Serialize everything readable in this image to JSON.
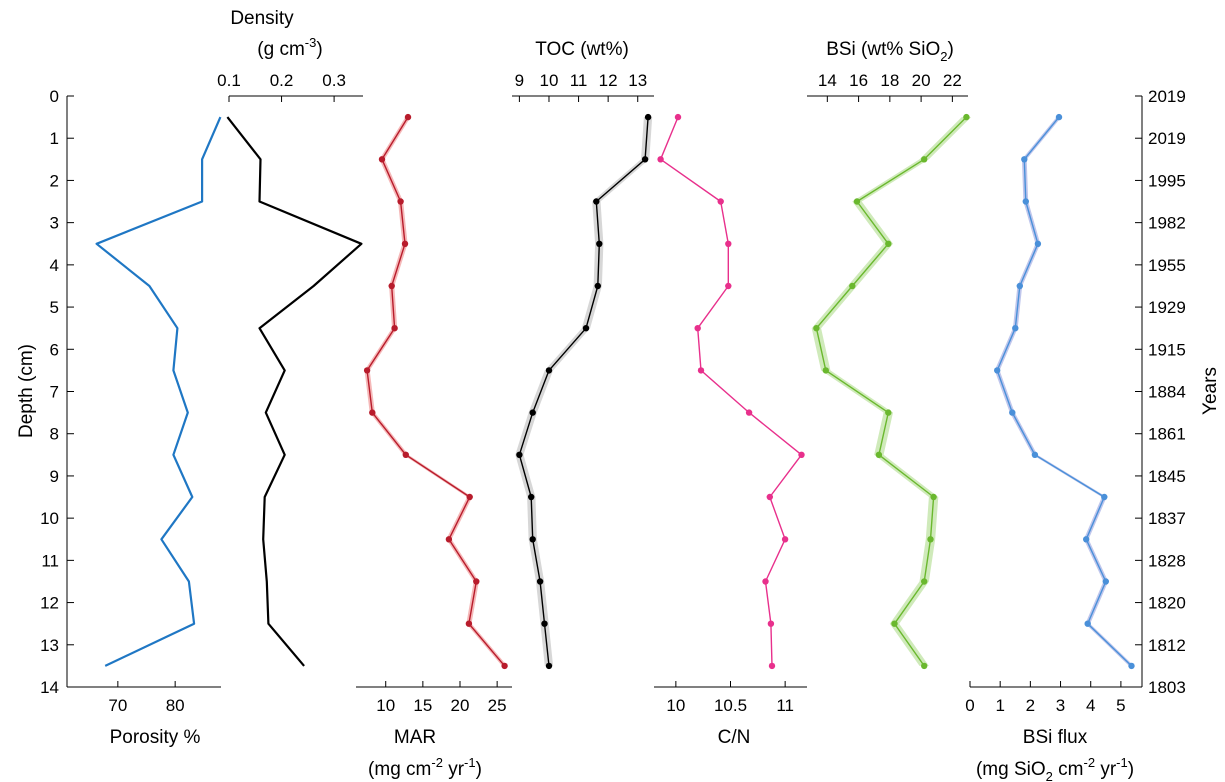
{
  "chart_data": {
    "type": "line",
    "depth_axis": {
      "label": "Depth (cm)",
      "range": [
        0,
        14
      ],
      "ticks": [
        0,
        1,
        2,
        3,
        4,
        5,
        6,
        7,
        8,
        9,
        10,
        11,
        12,
        13,
        14
      ],
      "reversed": true
    },
    "years_axis": {
      "label": "Years",
      "tick_depths": [
        0,
        1,
        2,
        3,
        4,
        5,
        6,
        7,
        8,
        9,
        10,
        11,
        12,
        13,
        14
      ],
      "tick_labels": [
        "2019",
        "2019",
        "1995",
        "1982",
        "1955",
        "1929",
        "1915",
        "1884",
        "1861",
        "1845",
        "1837",
        "1828",
        "1820",
        "1812",
        "1803"
      ]
    },
    "panels": [
      {
        "id": "porosity",
        "x_label": [
          "Porosity %"
        ],
        "x_ticks": [
          70,
          80
        ],
        "x_range": [
          62,
          88
        ],
        "axis_position": "bottom",
        "color": "#1f77c4",
        "series": [
          {
            "name": "Porosity",
            "depth": [
              0.5,
              1.5,
              2.5,
              3.5,
              4.5,
              5.5,
              6.5,
              7.5,
              8.5,
              9.5,
              10.5,
              11.5,
              12.5,
              13.5
            ],
            "values": [
              87.9,
              84.7,
              84.7,
              66.3,
              75.5,
              80.4,
              79.7,
              82.2,
              79.7,
              83.0,
              77.6,
              82.4,
              83.3,
              67.8
            ]
          }
        ]
      },
      {
        "id": "density",
        "x_label": [
          "Density",
          "(g cm-3)"
        ],
        "x_ticks": [
          0.1,
          0.2,
          0.3
        ],
        "x_range": [
          0.1,
          0.355
        ],
        "axis_position": "top",
        "color": "#000000",
        "series": [
          {
            "name": "Density",
            "depth": [
              0.5,
              1.5,
              2.5,
              3.5,
              4.5,
              5.5,
              6.5,
              7.5,
              8.5,
              9.5,
              10.5,
              11.5,
              12.5,
              13.5
            ],
            "values": [
              0.097,
              0.16,
              0.158,
              0.352,
              0.261,
              0.158,
              0.206,
              0.17,
              0.206,
              0.168,
              0.165,
              0.172,
              0.175,
              0.243
            ]
          }
        ]
      },
      {
        "id": "mar",
        "x_label": [
          "MAR",
          "(mg cm-2 yr-1)"
        ],
        "x_ticks": [
          10,
          15,
          20,
          25
        ],
        "x_range": [
          6,
          27
        ],
        "axis_position": "bottom",
        "color": "#b81c2c",
        "band_color": "#f2a0a0",
        "series": [
          {
            "name": "MAR",
            "depth": [
              0.5,
              1.5,
              2.5,
              3.5,
              4.5,
              5.5,
              6.5,
              7.5,
              8.5,
              9.5,
              10.5,
              11.5,
              12.5,
              13.5
            ],
            "values": [
              13.0,
              9.5,
              12.0,
              12.6,
              10.8,
              11.2,
              7.5,
              8.2,
              12.7,
              21.3,
              18.5,
              22.2,
              21.2,
              26.0
            ]
          }
        ]
      },
      {
        "id": "toc",
        "x_label": [
          "TOC (wt%)"
        ],
        "x_ticks": [
          9,
          10,
          11,
          12,
          13
        ],
        "x_range": [
          8.75,
          13.55
        ],
        "axis_position": "top",
        "color": "#000000",
        "band_color": "#c9c9c9",
        "series": [
          {
            "name": "TOC",
            "depth": [
              0.5,
              1.5,
              2.5,
              3.5,
              4.5,
              5.5,
              6.5,
              7.5,
              8.5,
              9.5,
              10.5,
              11.5,
              12.5,
              13.5
            ],
            "values": [
              13.35,
              13.25,
              11.6,
              11.7,
              11.65,
              11.25,
              10.0,
              9.45,
              9.0,
              9.4,
              9.45,
              9.7,
              9.85,
              10.0
            ]
          }
        ]
      },
      {
        "id": "cn",
        "x_label": [
          "C/N"
        ],
        "x_ticks": [
          10,
          10.5,
          11
        ],
        "x_range": [
          9.8,
          11.2
        ],
        "axis_position": "bottom",
        "color": "#e8308c",
        "series": [
          {
            "name": "C/N",
            "depth": [
              0.5,
              1.5,
              2.5,
              3.5,
              4.5,
              5.5,
              6.5,
              7.5,
              8.5,
              9.5,
              10.5,
              11.5,
              12.5,
              13.5
            ],
            "values": [
              10.02,
              9.86,
              10.41,
              10.48,
              10.48,
              10.2,
              10.23,
              10.67,
              11.15,
              10.86,
              11.0,
              10.82,
              10.87,
              10.88
            ]
          }
        ]
      },
      {
        "id": "bsi",
        "x_label": [
          "BSi (wt% SiO2)"
        ],
        "x_ticks": [
          14,
          16,
          18,
          20,
          22
        ],
        "x_range": [
          12.7,
          23.0
        ],
        "axis_position": "top",
        "color": "#6ab82e",
        "band_color": "#bfe3a3",
        "series": [
          {
            "name": "BSi",
            "depth": [
              0.5,
              1.5,
              2.5,
              3.5,
              4.5,
              5.5,
              6.5,
              7.5,
              8.5,
              9.5,
              10.5,
              11.5,
              12.5,
              13.5
            ],
            "values": [
              22.9,
              20.2,
              15.9,
              17.9,
              15.6,
              13.3,
              13.9,
              17.9,
              17.3,
              20.8,
              20.6,
              20.2,
              18.3,
              20.2
            ]
          }
        ]
      },
      {
        "id": "bsi_flux",
        "x_label": [
          "BSi flux",
          "(mg SiO2 cm-2 yr-1)"
        ],
        "x_ticks": [
          0,
          1,
          2,
          3,
          4,
          5
        ],
        "x_range": [
          0,
          5.6
        ],
        "axis_position": "bottom",
        "color": "#4a90d9",
        "band_color": "#aab3e6",
        "series": [
          {
            "name": "BSi flux",
            "depth": [
              0.5,
              1.5,
              2.5,
              3.5,
              4.5,
              5.5,
              6.5,
              7.5,
              8.5,
              9.5,
              10.5,
              11.5,
              12.5,
              13.5
            ],
            "values": [
              2.95,
              1.8,
              1.85,
              2.25,
              1.65,
              1.5,
              0.9,
              1.4,
              2.15,
              4.45,
              3.85,
              4.5,
              3.9,
              5.35
            ]
          }
        ]
      }
    ]
  }
}
